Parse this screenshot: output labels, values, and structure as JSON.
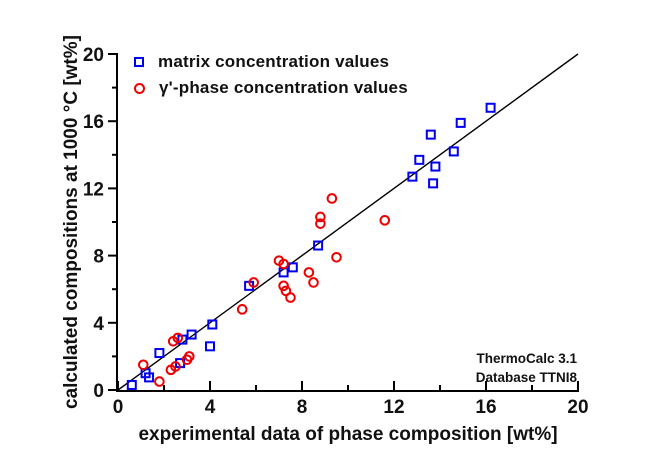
{
  "colors": {
    "background": "#ffffff",
    "axis": "#000000",
    "matrix_series": "#0000ee",
    "gamma_phase_series": "#ee0000",
    "reference_line": "#000000"
  },
  "chart_data": {
    "type": "scatter",
    "title": "",
    "xlabel": "experimental data of phase composition [wt%]",
    "ylabel": "calculated compositions at 1000 °C [wt%]",
    "xlim": [
      0,
      20
    ],
    "ylim": [
      0,
      20
    ],
    "x_major_ticks": [
      0,
      4,
      8,
      12,
      16,
      20
    ],
    "x_minor_ticks": [
      2,
      6,
      10,
      14,
      18
    ],
    "y_major_ticks": [
      0,
      4,
      8,
      12,
      16,
      20
    ],
    "y_minor_ticks": [
      2,
      6,
      10,
      14,
      18
    ],
    "grid": false,
    "legend_position": "top-left-inside",
    "reference_line": {
      "from": [
        0,
        0
      ],
      "to": [
        20,
        20
      ],
      "style": "solid",
      "color": "#000000"
    },
    "series": [
      {
        "name": "matrix concentration values",
        "marker": "open-square",
        "color": "#0000ee",
        "points": [
          [
            0.6,
            0.3
          ],
          [
            1.2,
            1.0
          ],
          [
            1.35,
            0.75
          ],
          [
            1.8,
            2.2
          ],
          [
            2.7,
            1.6
          ],
          [
            2.8,
            3.0
          ],
          [
            3.2,
            3.3
          ],
          [
            4.0,
            2.6
          ],
          [
            4.1,
            3.9
          ],
          [
            5.7,
            6.2
          ],
          [
            7.2,
            7.0
          ],
          [
            7.6,
            7.3
          ],
          [
            8.7,
            8.6
          ],
          [
            12.8,
            12.7
          ],
          [
            13.1,
            13.7
          ],
          [
            13.6,
            15.2
          ],
          [
            13.7,
            12.3
          ],
          [
            13.8,
            13.3
          ],
          [
            14.6,
            14.2
          ],
          [
            14.9,
            15.9
          ],
          [
            16.2,
            16.8
          ]
        ]
      },
      {
        "name": "γ'-phase concentration values",
        "marker": "open-circle",
        "color": "#ee0000",
        "points": [
          [
            1.1,
            1.5
          ],
          [
            1.8,
            0.5
          ],
          [
            2.3,
            1.2
          ],
          [
            2.5,
            1.4
          ],
          [
            2.4,
            2.9
          ],
          [
            2.6,
            3.1
          ],
          [
            3.0,
            1.8
          ],
          [
            3.1,
            2.0
          ],
          [
            5.4,
            4.8
          ],
          [
            5.9,
            6.4
          ],
          [
            7.0,
            7.7
          ],
          [
            7.2,
            7.5
          ],
          [
            7.2,
            6.2
          ],
          [
            7.3,
            5.9
          ],
          [
            7.5,
            5.5
          ],
          [
            8.3,
            7.0
          ],
          [
            8.5,
            6.4
          ],
          [
            8.8,
            9.9
          ],
          [
            8.8,
            10.3
          ],
          [
            9.3,
            11.4
          ],
          [
            9.5,
            7.9
          ],
          [
            11.6,
            10.1
          ]
        ]
      }
    ],
    "annotations": [
      {
        "text": "ThermoCalc 3.1"
      },
      {
        "text": "Database TTNI8"
      }
    ]
  }
}
